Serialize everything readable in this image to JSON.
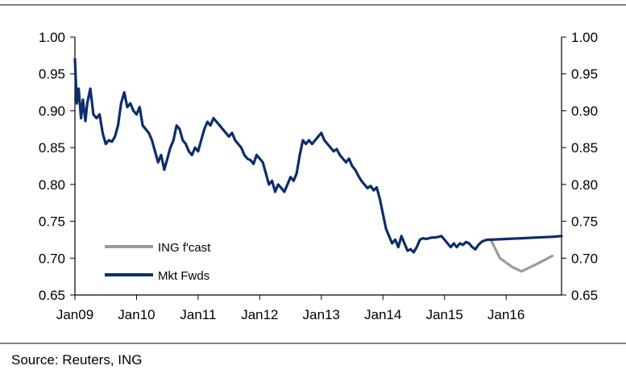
{
  "source": "Source: Reuters, ING",
  "colors": {
    "forecast": "#9B9B9B",
    "forwards": "#0B2D6B",
    "axis": "#000000"
  },
  "chart_data": {
    "type": "line",
    "title": "",
    "xlabel": "",
    "ylabel": "",
    "ylim": [
      0.65,
      1.0
    ],
    "yticks": [
      "1.00",
      "0.95",
      "0.90",
      "0.85",
      "0.80",
      "0.75",
      "0.70",
      "0.65"
    ],
    "y_axis_left": true,
    "y_axis_right": true,
    "xlim": [
      2009.0,
      2016.9
    ],
    "x_tick_labels": [
      "Jan09",
      "Jan10",
      "Jan11",
      "Jan12",
      "Jan13",
      "Jan14",
      "Jan15",
      "Jan16"
    ],
    "x_tick_positions": [
      2009,
      2010,
      2011,
      2012,
      2013,
      2014,
      2015,
      2016
    ],
    "grid": false,
    "legend_position": "bottom-left",
    "series": [
      {
        "name": "ING f'cast",
        "color": "#9B9B9B",
        "x": [
          2015.75,
          2015.9,
          2016.1,
          2016.25,
          2016.5,
          2016.75
        ],
        "y": [
          0.725,
          0.7,
          0.688,
          0.682,
          0.692,
          0.703
        ]
      },
      {
        "name": "Mkt Fwds",
        "color": "#0B2D6B",
        "x": [
          2009.0,
          2009.03,
          2009.06,
          2009.1,
          2009.13,
          2009.17,
          2009.2,
          2009.25,
          2009.3,
          2009.35,
          2009.4,
          2009.45,
          2009.5,
          2009.55,
          2009.6,
          2009.65,
          2009.7,
          2009.75,
          2009.8,
          2009.85,
          2009.9,
          2009.95,
          2010.0,
          2010.05,
          2010.1,
          2010.15,
          2010.2,
          2010.25,
          2010.3,
          2010.35,
          2010.4,
          2010.45,
          2010.5,
          2010.55,
          2010.6,
          2010.65,
          2010.7,
          2010.75,
          2010.8,
          2010.85,
          2010.9,
          2010.95,
          2011.0,
          2011.05,
          2011.1,
          2011.15,
          2011.2,
          2011.25,
          2011.3,
          2011.35,
          2011.4,
          2011.45,
          2011.5,
          2011.55,
          2011.6,
          2011.65,
          2011.7,
          2011.75,
          2011.8,
          2011.85,
          2011.9,
          2011.95,
          2012.0,
          2012.05,
          2012.1,
          2012.15,
          2012.2,
          2012.25,
          2012.3,
          2012.35,
          2012.4,
          2012.45,
          2012.5,
          2012.55,
          2012.6,
          2012.65,
          2012.7,
          2012.75,
          2012.8,
          2012.85,
          2012.9,
          2012.95,
          2013.0,
          2013.05,
          2013.1,
          2013.15,
          2013.2,
          2013.25,
          2013.3,
          2013.35,
          2013.4,
          2013.45,
          2013.5,
          2013.55,
          2013.6,
          2013.65,
          2013.7,
          2013.75,
          2013.8,
          2013.85,
          2013.9,
          2013.95,
          2014.0,
          2014.05,
          2014.1,
          2014.15,
          2014.2,
          2014.25,
          2014.3,
          2014.35,
          2014.4,
          2014.45,
          2014.5,
          2014.55,
          2014.6,
          2014.65,
          2014.7,
          2014.75,
          2014.8,
          2014.85,
          2014.9,
          2014.95,
          2015.0,
          2015.05,
          2015.1,
          2015.15,
          2015.2,
          2015.25,
          2015.3,
          2015.35,
          2015.4,
          2015.45,
          2015.5,
          2015.55,
          2015.6,
          2015.65,
          2015.7,
          2015.75,
          2016.0,
          2016.25,
          2016.5,
          2016.75,
          2016.9
        ],
        "y": [
          0.97,
          0.91,
          0.93,
          0.89,
          0.915,
          0.886,
          0.91,
          0.93,
          0.895,
          0.89,
          0.895,
          0.87,
          0.855,
          0.86,
          0.858,
          0.865,
          0.88,
          0.91,
          0.925,
          0.905,
          0.91,
          0.9,
          0.895,
          0.905,
          0.88,
          0.875,
          0.87,
          0.86,
          0.845,
          0.83,
          0.84,
          0.82,
          0.835,
          0.85,
          0.86,
          0.88,
          0.875,
          0.86,
          0.855,
          0.845,
          0.84,
          0.85,
          0.845,
          0.86,
          0.875,
          0.885,
          0.88,
          0.89,
          0.885,
          0.88,
          0.875,
          0.87,
          0.865,
          0.87,
          0.86,
          0.855,
          0.85,
          0.84,
          0.835,
          0.833,
          0.828,
          0.84,
          0.835,
          0.83,
          0.815,
          0.8,
          0.805,
          0.79,
          0.8,
          0.795,
          0.79,
          0.8,
          0.81,
          0.805,
          0.815,
          0.84,
          0.86,
          0.855,
          0.86,
          0.855,
          0.86,
          0.865,
          0.87,
          0.86,
          0.855,
          0.85,
          0.845,
          0.848,
          0.84,
          0.835,
          0.83,
          0.835,
          0.825,
          0.82,
          0.812,
          0.805,
          0.8,
          0.795,
          0.798,
          0.792,
          0.796,
          0.78,
          0.76,
          0.74,
          0.73,
          0.72,
          0.725,
          0.715,
          0.73,
          0.72,
          0.71,
          0.712,
          0.708,
          0.715,
          0.725,
          0.727,
          0.726,
          0.727,
          0.728,
          0.728,
          0.729,
          0.73,
          0.725,
          0.72,
          0.715,
          0.72,
          0.715,
          0.72,
          0.718,
          0.722,
          0.72,
          0.715,
          0.712,
          0.718,
          0.722,
          0.724,
          0.725,
          0.725,
          0.726,
          0.727,
          0.728,
          0.729,
          0.73
        ]
      }
    ]
  }
}
